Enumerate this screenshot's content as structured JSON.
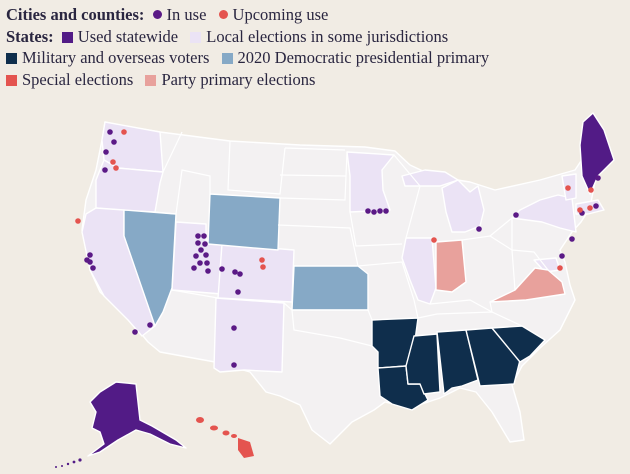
{
  "legend": {
    "cities_heading": "Cities and counties:",
    "cities_items": [
      {
        "label": "In use",
        "color": "#5b1a86"
      },
      {
        "label": "Upcoming use",
        "color": "#e4544f"
      }
    ],
    "states_heading": "States:",
    "states_items": [
      {
        "label": "Used statewide",
        "color": "#521b86"
      },
      {
        "label": "Local elections in some jurisdictions",
        "color": "#ebe3f5"
      },
      {
        "label": "Military and overseas voters",
        "color": "#0f2e4c"
      },
      {
        "label": "2020 Democratic presidential primary",
        "color": "#86a9c6"
      },
      {
        "label": "Special elections",
        "color": "#e4544f"
      },
      {
        "label": "Party primary elections",
        "color": "#e8a19c"
      }
    ]
  },
  "map": {
    "base_state_color": "#ffffff",
    "default_fill": "#f3f1f2",
    "states": {
      "Maine": "statewide",
      "Alaska": "statewide",
      "Washington": "local",
      "Oregon": "local",
      "California": "local",
      "Utah": "local",
      "Colorado": "local",
      "New Mexico": "local",
      "Minnesota": "local",
      "Michigan": "local",
      "Illinois": "local",
      "New York": "local",
      "Vermont": "local",
      "Massachusetts": "local",
      "Maryland": "local",
      "Nevada": "democratic_primary",
      "Wyoming": "democratic_primary",
      "Kansas": "democratic_primary",
      "Arkansas": "military",
      "Louisiana": "military",
      "Mississippi": "military",
      "Alabama": "military",
      "Georgia": "military",
      "South Carolina": "military",
      "Hawaii": "special",
      "Indiana": "party_primary",
      "Virginia": "party_primary"
    }
  }
}
